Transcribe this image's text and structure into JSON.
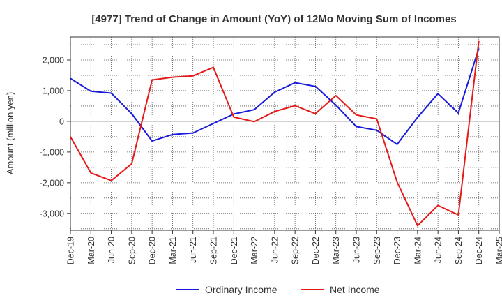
{
  "chart_data": {
    "type": "line",
    "title": "[4977]  Trend of Change in Amount (YoY) of 12Mo Moving Sum of Incomes",
    "xlabel": "",
    "ylabel": "Amount (million yen)",
    "ylim": [
      -3550,
      2750
    ],
    "yticks": [
      2000,
      1000,
      0,
      -1000,
      -2000,
      -3000
    ],
    "ytick_labels": [
      "2,000",
      "1,000",
      "0",
      "-1,000",
      "-2,000",
      "-3,000"
    ],
    "categories": [
      "Dec-19",
      "Mar-20",
      "Jun-20",
      "Sep-20",
      "Dec-20",
      "Mar-21",
      "Jun-21",
      "Sep-21",
      "Dec-21",
      "Mar-22",
      "Jun-22",
      "Sep-22",
      "Dec-22",
      "Mar-23",
      "Jun-23",
      "Sep-23",
      "Dec-23",
      "Mar-24",
      "Jun-24",
      "Sep-24",
      "Dec-24",
      "Mar-25"
    ],
    "grid": true,
    "legend_position": "bottom",
    "series": [
      {
        "name": "Ordinary Income",
        "color": "#1a1adb",
        "values": [
          1400,
          980,
          920,
          250,
          -640,
          -430,
          -380,
          -70,
          240,
          380,
          950,
          1260,
          1140,
          530,
          -170,
          -290,
          -750,
          130,
          900,
          270,
          2380,
          null
        ]
      },
      {
        "name": "Net Income",
        "color": "#e61919",
        "values": [
          -500,
          -1680,
          -1930,
          -1380,
          1350,
          1440,
          1480,
          1760,
          140,
          -10,
          320,
          510,
          250,
          840,
          210,
          80,
          -1980,
          -3400,
          -2740,
          -3050,
          2620,
          null
        ]
      }
    ]
  }
}
